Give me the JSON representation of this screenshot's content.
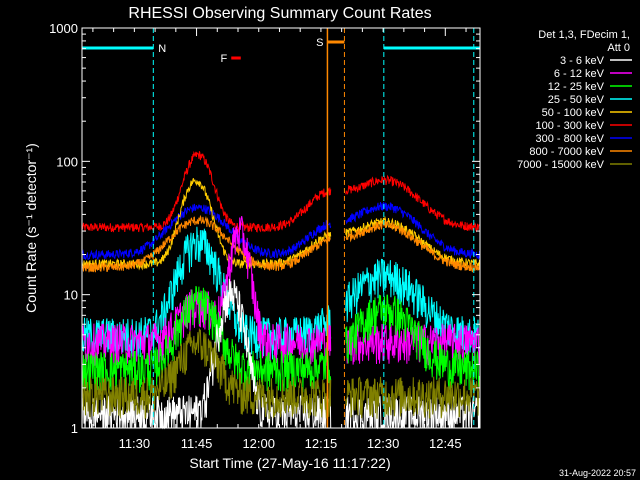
{
  "chart_data": {
    "type": "line",
    "title": "RHESSI Observing Summary Count Rates",
    "xlabel": "Start Time (27-May-16 11:17:22)",
    "ylabel": "Count Rate (s⁻¹ detector⁻¹)",
    "yscale": "log",
    "ylim": [
      1,
      1000
    ],
    "xlim_minutes": [
      0,
      96
    ],
    "x_ticks": [
      {
        "m": 12.63,
        "label": "11:30"
      },
      {
        "m": 27.63,
        "label": "11:45"
      },
      {
        "m": 42.63,
        "label": "12:00"
      },
      {
        "m": 57.63,
        "label": "12:15"
      },
      {
        "m": 72.63,
        "label": "12:30"
      },
      {
        "m": 87.63,
        "label": "12:45"
      }
    ],
    "y_ticks": [
      {
        "v": 1,
        "label": "1"
      },
      {
        "v": 10,
        "label": "10"
      },
      {
        "v": 100,
        "label": "100"
      },
      {
        "v": 1000,
        "label": "1000"
      }
    ],
    "legend": {
      "header": [
        "Det 1,3, FDecim 1,",
        "Att 0"
      ],
      "entries": [
        {
          "label": "3 - 6 keV",
          "color": "#ffffff"
        },
        {
          "label": "6 - 12 keV",
          "color": "#ff00ff"
        },
        {
          "label": "12 - 25 keV",
          "color": "#00ff00"
        },
        {
          "label": "25 - 50 keV",
          "color": "#00ffff"
        },
        {
          "label": "50 - 100 keV",
          "color": "#ffcc00"
        },
        {
          "label": "100 - 300 keV",
          "color": "#ff0000"
        },
        {
          "label": "300 - 800 keV",
          "color": "#0000ff"
        },
        {
          "label": "800 - 7000 keV",
          "color": "#ff8800"
        },
        {
          "label": "7000 - 15000 keV",
          "color": "#808000"
        }
      ],
      "position": "right"
    },
    "gap_minutes": [
      60.0,
      63.5
    ],
    "series": [
      {
        "name": "100 - 300 keV",
        "color": "#ff0000",
        "base": 32,
        "peaks": [
          {
            "t": 28,
            "a": 80,
            "w": 3
          },
          {
            "t": 73,
            "a": 40,
            "w": 7
          }
        ],
        "rise": 22
      },
      {
        "name": "300 - 800 keV",
        "color": "#0000ff",
        "base": 20,
        "peaks": [
          {
            "t": 28,
            "a": 25,
            "w": 6
          },
          {
            "t": 73,
            "a": 26,
            "w": 7
          }
        ],
        "rise": 10
      },
      {
        "name": "50 - 100 keV",
        "color": "#ffcc00",
        "base": 17,
        "peaks": [
          {
            "t": 27.5,
            "a": 55,
            "w": 3
          },
          {
            "t": 73,
            "a": 18,
            "w": 7
          }
        ],
        "rise": 8
      },
      {
        "name": "800 - 7000 keV",
        "color": "#ff8800",
        "base": 16,
        "peaks": [
          {
            "t": 28,
            "a": 20,
            "w": 6
          },
          {
            "t": 73,
            "a": 17,
            "w": 7
          }
        ],
        "rise": 7
      },
      {
        "name": "25 - 50 keV",
        "color": "#00ffff",
        "base": 5,
        "peaks": [
          {
            "t": 28,
            "a": 20,
            "w": 4
          },
          {
            "t": 73,
            "a": 9,
            "w": 7
          }
        ],
        "rise": 0
      },
      {
        "name": "6 - 12 keV",
        "color": "#ff00ff",
        "base": 4.5,
        "peaks": [
          {
            "t": 38,
            "a": 25,
            "w": 2
          },
          {
            "t": 28,
            "a": 4,
            "w": 4
          }
        ],
        "rise": 0
      },
      {
        "name": "12 - 25 keV",
        "color": "#00ff00",
        "base": 2.8,
        "peaks": [
          {
            "t": 28,
            "a": 6,
            "w": 4
          },
          {
            "t": 73,
            "a": 5,
            "w": 6
          }
        ],
        "rise": 0
      },
      {
        "name": "3 - 6 keV",
        "color": "#ffffff",
        "base": 1.3,
        "peaks": [
          {
            "t": 36,
            "a": 9,
            "w": 2.5
          }
        ],
        "rise": 0
      },
      {
        "name": "7000 - 15000 keV",
        "color": "#808000",
        "base": 1.8,
        "peaks": [
          {
            "t": 28,
            "a": 2.5,
            "w": 4
          }
        ],
        "rise": 0
      }
    ],
    "markers": {
      "night": [
        {
          "label": "N",
          "start": 0,
          "end": 17.2,
          "color": "#00ffff"
        },
        {
          "label": "",
          "start": 72.8,
          "end": 96,
          "color": "#00ffff"
        }
      ],
      "night_lines": [
        17.2,
        72.8,
        94.5
      ],
      "flare": {
        "label": "F",
        "start": 36,
        "end": 38.3,
        "color": "#ff0000"
      },
      "saa": {
        "label": "S",
        "start": 59.2,
        "end": 63.3,
        "color": "#ff8800"
      },
      "saa_lines": [
        59.2,
        63.3
      ]
    }
  },
  "footer": {
    "timestamp": "31-Aug-2022 20:57"
  }
}
